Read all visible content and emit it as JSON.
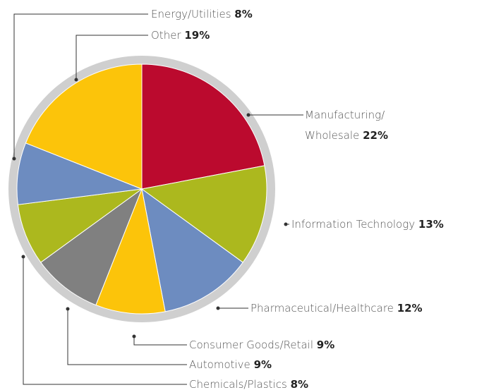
{
  "chart_data": {
    "type": "pie",
    "categories": [
      "Manufacturing/\nWholesale",
      "Information Technology",
      "Pharmaceutical/Healthcare",
      "Consumer Goods/Retail",
      "Automotive",
      "Chemicals/Plastics",
      "Energy/Utilities",
      "Other"
    ],
    "values": [
      22,
      13,
      12,
      9,
      9,
      8,
      8,
      19
    ],
    "value_labels": [
      "22%",
      "13%",
      "12%",
      "9%",
      "9%",
      "8%",
      "8%",
      "19%"
    ],
    "colors": [
      "#bb0a2e",
      "#acb81e",
      "#6d8cc0",
      "#fcc40a",
      "#808080",
      "#acb81e",
      "#6d8cc0",
      "#fcc40a"
    ]
  }
}
